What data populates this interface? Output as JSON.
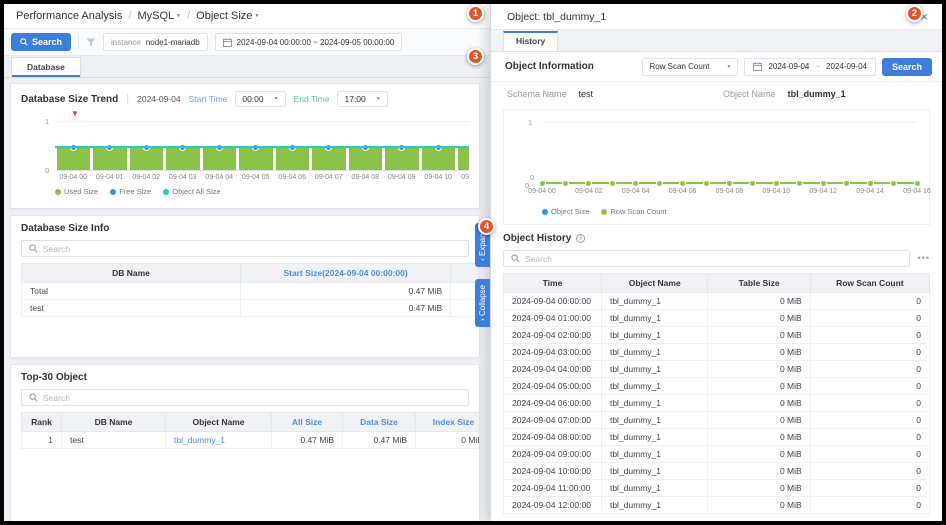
{
  "ui": {
    "caret": "▼",
    "close": "×",
    "ellipsis": "•••",
    "info": "i",
    "red_marker": "▼",
    "tilde": "~",
    "crumb_sep": "/"
  },
  "breadcrumb": {
    "root": "Performance Analysis",
    "db": "MySQL",
    "page": "Object Size"
  },
  "toolbar": {
    "search": "Search",
    "instance_label": "instance",
    "instance_value": "node1-mariadb",
    "date_range": "2024-09-04 00:00:00 ~ 2024-09-05 00:00:00"
  },
  "tabs": {
    "database": "Database"
  },
  "trend": {
    "title": "Database Size Trend",
    "date": "2024-09-04",
    "start_label": "Start Time",
    "start_value": "00:00",
    "end_label": "End Time",
    "end_value": "17:00",
    "chart_data": {
      "type": "bar",
      "title": "Database Size Trend",
      "categories": [
        "09-04 00",
        "09-04 01",
        "09-04 02",
        "09-04 03",
        "09-04 04",
        "09-04 05",
        "09-04 06",
        "09-04 07",
        "09-04 08",
        "09-04 09",
        "09-04 10",
        "09-04 11",
        "09-04 12"
      ],
      "series": [
        {
          "name": "Used Size",
          "type": "bar",
          "color": "#8bc34a",
          "values": [
            0.47,
            0.47,
            0.47,
            0.47,
            0.47,
            0.47,
            0.47,
            0.47,
            0.47,
            0.47,
            0.47,
            0.47,
            0.47
          ]
        },
        {
          "name": "Free Size",
          "type": "scatter",
          "color": "#2196f3",
          "values": [
            0.47,
            0.47,
            0.47,
            0.47,
            0.47,
            0.47,
            0.47,
            0.47,
            0.47,
            0.47,
            0.47,
            0.47,
            0.47
          ]
        },
        {
          "name": "Object All Size",
          "type": "line",
          "color": "#26c6da",
          "values": [
            0.47,
            0.47,
            0.47,
            0.47,
            0.47,
            0.47,
            0.47,
            0.47,
            0.47,
            0.47,
            0.47,
            0.47,
            0.47
          ]
        }
      ],
      "ylim": [
        0,
        1
      ],
      "y_ticks": [
        "1",
        "0"
      ],
      "unit": "MiB",
      "legend_position": "bottom"
    }
  },
  "db_info": {
    "title": "Database Size Info",
    "search_placeholder": "Search",
    "columns": [
      "DB Name",
      "Start Size(2024-09-04 00:00:00)",
      ""
    ],
    "rows": [
      {
        "db": "Total",
        "start": "0.47 MiB"
      },
      {
        "db": "test",
        "start": "0.47 MiB"
      }
    ]
  },
  "panel_toggle": {
    "expand": "Expand",
    "collapse": "Collapse",
    "expand_chevron": "‹",
    "collapse_chevron": "›"
  },
  "top30": {
    "title": "Top-30 Object",
    "search_placeholder": "Search",
    "columns": [
      "Rank",
      "DB Name",
      "Object Name",
      "All Size",
      "Data Size",
      "Index Size",
      "Al"
    ],
    "rows": [
      {
        "rank": "1",
        "db": "test",
        "object": "tbl_dummy_1",
        "all": "0.47 MiB",
        "data": "0.47 MiB",
        "index": "0 MiB",
        "extra": ""
      }
    ]
  },
  "drawer": {
    "title": "Object: tbl_dummy_1",
    "tab": "History",
    "info": {
      "title": "Object Information",
      "metric": "Row Scan Count",
      "date_from": "2024-09-04",
      "date_to": "2024-09-04",
      "search": "Search",
      "schema_label": "Schema Name",
      "schema_value": "test",
      "object_label": "Object Name",
      "object_value": "tbl_dummy_1"
    },
    "chart_data": {
      "type": "line",
      "categories": [
        "09-04 00",
        "09-04 01",
        "09-04 02",
        "09-04 03",
        "09-04 04",
        "09-04 05",
        "09-04 06",
        "09-04 07",
        "09-04 08",
        "09-04 09",
        "09-04 10",
        "09-04 11",
        "09-04 12",
        "09-04 13",
        "09-04 14",
        "09-04 15",
        "09-04 16"
      ],
      "x_tick_labels": [
        "09-04 00",
        "09-04 02",
        "09-04 04",
        "09-04 06",
        "09-04 08",
        "09-04 10",
        "09-04 12",
        "09-04 14",
        "09-04 16"
      ],
      "series": [
        {
          "name": "Object Size",
          "color": "#2196f3",
          "values": [
            0,
            0,
            0,
            0,
            0,
            0,
            0,
            0,
            0,
            0,
            0,
            0,
            0,
            0,
            0,
            0,
            0
          ]
        },
        {
          "name": "Row Scan Count",
          "color": "#8bc34a",
          "values": [
            0,
            0,
            0,
            0,
            0,
            0,
            0,
            0,
            0,
            0,
            0,
            0,
            0,
            0,
            0,
            0,
            0
          ]
        }
      ],
      "ylim": [
        0,
        1
      ],
      "y_ticks": [
        "1",
        "0",
        "0"
      ],
      "legend_position": "bottom"
    },
    "history": {
      "title": "Object History",
      "search_placeholder": "Search",
      "columns": [
        "Time",
        "Object Name",
        "Table Size",
        "Row Scan Count"
      ],
      "rows": [
        {
          "time": "2024-09-04 00:00:00",
          "object": "tbl_dummy_1",
          "size": "0 MiB",
          "count": "0"
        },
        {
          "time": "2024-09-04 01:00:00",
          "object": "tbl_dummy_1",
          "size": "0 MiB",
          "count": "0"
        },
        {
          "time": "2024-09-04 02:00:00",
          "object": "tbl_dummy_1",
          "size": "0 MiB",
          "count": "0"
        },
        {
          "time": "2024-09-04 03:00:00",
          "object": "tbl_dummy_1",
          "size": "0 MiB",
          "count": "0"
        },
        {
          "time": "2024-09-04 04:00:00",
          "object": "tbl_dummy_1",
          "size": "0 MiB",
          "count": "0"
        },
        {
          "time": "2024-09-04 05:00:00",
          "object": "tbl_dummy_1",
          "size": "0 MiB",
          "count": "0"
        },
        {
          "time": "2024-09-04 06:00:00",
          "object": "tbl_dummy_1",
          "size": "0 MiB",
          "count": "0"
        },
        {
          "time": "2024-09-04 07:00:00",
          "object": "tbl_dummy_1",
          "size": "0 MiB",
          "count": "0"
        },
        {
          "time": "2024-09-04 08:00:00",
          "object": "tbl_dummy_1",
          "size": "0 MiB",
          "count": "0"
        },
        {
          "time": "2024-09-04 09:00:00",
          "object": "tbl_dummy_1",
          "size": "0 MiB",
          "count": "0"
        },
        {
          "time": "2024-09-04 10:00:00",
          "object": "tbl_dummy_1",
          "size": "0 MiB",
          "count": "0"
        },
        {
          "time": "2024-09-04 11:00:00",
          "object": "tbl_dummy_1",
          "size": "0 MiB",
          "count": "0"
        },
        {
          "time": "2024-09-04 12:00:00",
          "object": "tbl_dummy_1",
          "size": "0 MiB",
          "count": "0"
        }
      ]
    }
  },
  "badges": [
    "1",
    "2",
    "3",
    "4"
  ],
  "colors": {
    "accent": "#3d7edd",
    "link": "#4a90e2",
    "green": "#8bc34a",
    "cyan": "#26c6da",
    "blue_dot": "#2196f3",
    "badge": "#e0552b",
    "start_label": "#56aaf5",
    "end_label": "#4fcd8f"
  }
}
